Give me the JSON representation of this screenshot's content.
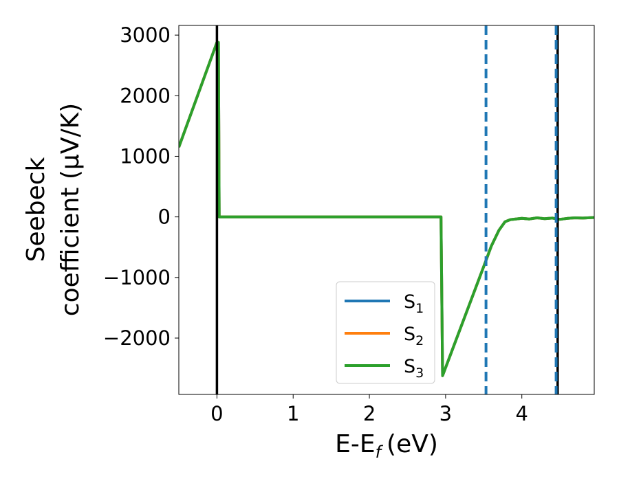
{
  "chart_data": {
    "type": "line",
    "xlabel": "E-E",
    "xlabel_sub": "f",
    "xlabel_unit": "(eV)",
    "ylabel_line1": "Seebeck",
    "ylabel_line2": "coefficient  (μV/K)",
    "xlim": [
      -0.5,
      4.95
    ],
    "ylim": [
      -2930,
      3160
    ],
    "x_ticks": [
      0,
      1,
      2,
      3,
      4
    ],
    "x_tick_labels": [
      "0",
      "1",
      "2",
      "3",
      "4"
    ],
    "y_ticks": [
      -2000,
      -1000,
      0,
      1000,
      2000,
      3000
    ],
    "y_tick_labels": [
      "−2000",
      "−1000",
      "0",
      "1000",
      "2000",
      "3000"
    ],
    "grid": false,
    "legend_position": "lower-center",
    "series": [
      {
        "name": "S",
        "sub": "1",
        "color": "#1f77b4",
        "x": [
          -0.5,
          0.0,
          0.02,
          0.03,
          2.94,
          2.96,
          3.53,
          3.6,
          3.7,
          3.78,
          3.85,
          4.0,
          4.1,
          4.2,
          4.3,
          4.4,
          4.5,
          4.6,
          4.7,
          4.8,
          4.95
        ],
        "y": [
          1150,
          2880,
          2880,
          0,
          0,
          -2620,
          -720,
          -480,
          -220,
          -80,
          -45,
          -25,
          -35,
          -15,
          -30,
          -20,
          -40,
          -25,
          -15,
          -20,
          -10
        ]
      },
      {
        "name": "S",
        "sub": "2",
        "color": "#ff7f0e",
        "x": [
          -0.5,
          0.0,
          0.02,
          0.03,
          2.94,
          2.96,
          3.53,
          3.6,
          3.7,
          3.78,
          3.85,
          4.0,
          4.1,
          4.2,
          4.3,
          4.4,
          4.5,
          4.6,
          4.7,
          4.8,
          4.95
        ],
        "y": [
          1150,
          2880,
          2880,
          0,
          0,
          -2620,
          -720,
          -480,
          -220,
          -80,
          -45,
          -25,
          -35,
          -15,
          -30,
          -20,
          -40,
          -25,
          -15,
          -20,
          -10
        ]
      },
      {
        "name": "S",
        "sub": "3",
        "color": "#2ca02c",
        "x": [
          -0.5,
          0.0,
          0.02,
          0.03,
          2.94,
          2.96,
          3.53,
          3.6,
          3.7,
          3.78,
          3.85,
          4.0,
          4.1,
          4.2,
          4.3,
          4.4,
          4.5,
          4.6,
          4.7,
          4.8,
          4.95
        ],
        "y": [
          1150,
          2880,
          2880,
          0,
          0,
          -2620,
          -720,
          -480,
          -220,
          -80,
          -45,
          -25,
          -35,
          -15,
          -30,
          -20,
          -40,
          -25,
          -15,
          -20,
          -10
        ]
      }
    ],
    "vlines": [
      {
        "x": 0.0,
        "color": "#000000",
        "style": "solid"
      },
      {
        "x": 4.47,
        "color": "#000000",
        "style": "solid"
      },
      {
        "x": 3.53,
        "color": "#1f77b4",
        "style": "dashed"
      },
      {
        "x": 4.45,
        "color": "#1f77b4",
        "style": "dashed"
      }
    ]
  }
}
